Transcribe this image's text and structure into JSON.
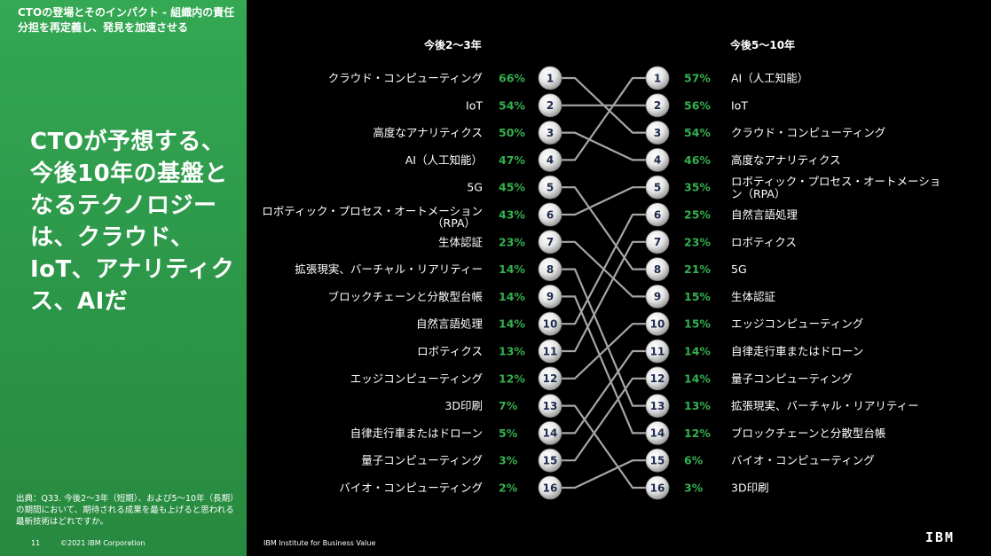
{
  "sidebar": {
    "subtitle": "CTOの登場とそのインパクト - 組織内の責任分担を再定義し、発見を加速させる",
    "headline": "CTOが予想する、今後10年の基盤となるテクノロジーは、クラウド、IoT、アナリティクス、AIだ",
    "source": "出典：Q33. 今後2～3年（短期）、および5～10年（長期）の期間において、期待される成果を最も上げると思われる最新技術はどれですか。"
  },
  "footer": {
    "page": "11",
    "copyright": "©2021 IBM Corporation",
    "institute": "IBM Institute for Business Value",
    "logo": "IBM"
  },
  "colors": {
    "accent": "#35b04f",
    "sidebar": "#2e9a4b",
    "line": "#a6a6a6"
  },
  "chart_data": {
    "type": "slope",
    "short_term_title": "今後2～3年",
    "long_term_title": "今後5～10年",
    "short_term": [
      {
        "rank": 1,
        "label": "クラウド・コンピューティング",
        "value": "66%"
      },
      {
        "rank": 2,
        "label": "IoT",
        "value": "54%"
      },
      {
        "rank": 3,
        "label": "高度なアナリティクス",
        "value": "50%"
      },
      {
        "rank": 4,
        "label": "AI（人工知能）",
        "value": "47%"
      },
      {
        "rank": 5,
        "label": "5G",
        "value": "45%"
      },
      {
        "rank": 6,
        "label": "ロボティック・プロセス・オートメーション（RPA）",
        "value": "43%"
      },
      {
        "rank": 7,
        "label": "生体認証",
        "value": "23%"
      },
      {
        "rank": 8,
        "label": "拡張現実、バーチャル・リアリティー",
        "value": "14%"
      },
      {
        "rank": 9,
        "label": "ブロックチェーンと分散型台帳",
        "value": "14%"
      },
      {
        "rank": 10,
        "label": "自然言語処理",
        "value": "14%"
      },
      {
        "rank": 11,
        "label": "ロボティクス",
        "value": "13%"
      },
      {
        "rank": 12,
        "label": "エッジコンピューティング",
        "value": "12%"
      },
      {
        "rank": 13,
        "label": "3D印刷",
        "value": "7%"
      },
      {
        "rank": 14,
        "label": "自律走行車またはドローン",
        "value": "5%"
      },
      {
        "rank": 15,
        "label": "量子コンピューティング",
        "value": "3%"
      },
      {
        "rank": 16,
        "label": "バイオ・コンピューティング",
        "value": "2%"
      }
    ],
    "long_term": [
      {
        "rank": 1,
        "label": "AI（人工知能）",
        "value": "57%"
      },
      {
        "rank": 2,
        "label": "IoT",
        "value": "56%"
      },
      {
        "rank": 3,
        "label": "クラウド・コンピューティング",
        "value": "54%"
      },
      {
        "rank": 4,
        "label": "高度なアナリティクス",
        "value": "46%"
      },
      {
        "rank": 5,
        "label": "ロボティック・プロセス・オートメーション（RPA）",
        "value": "35%"
      },
      {
        "rank": 6,
        "label": "自然言語処理",
        "value": "25%"
      },
      {
        "rank": 7,
        "label": "ロボティクス",
        "value": "23%"
      },
      {
        "rank": 8,
        "label": "5G",
        "value": "21%"
      },
      {
        "rank": 9,
        "label": "生体認証",
        "value": "15%"
      },
      {
        "rank": 10,
        "label": "エッジコンピューティング",
        "value": "15%"
      },
      {
        "rank": 11,
        "label": "自律走行車またはドローン",
        "value": "14%"
      },
      {
        "rank": 12,
        "label": "量子コンピューティング",
        "value": "14%"
      },
      {
        "rank": 13,
        "label": "拡張現実、バーチャル・リアリティー",
        "value": "13%"
      },
      {
        "rank": 14,
        "label": "ブロックチェーンと分散型台帳",
        "value": "12%"
      },
      {
        "rank": 15,
        "label": "バイオ・コンピューティング",
        "value": "6%"
      },
      {
        "rank": 16,
        "label": "3D印刷",
        "value": "3%"
      }
    ],
    "connections": [
      {
        "from": 1,
        "to": 3
      },
      {
        "from": 2,
        "to": 2
      },
      {
        "from": 3,
        "to": 4
      },
      {
        "from": 4,
        "to": 1
      },
      {
        "from": 5,
        "to": 8
      },
      {
        "from": 6,
        "to": 5
      },
      {
        "from": 7,
        "to": 9
      },
      {
        "from": 8,
        "to": 13
      },
      {
        "from": 9,
        "to": 14
      },
      {
        "from": 10,
        "to": 6
      },
      {
        "from": 11,
        "to": 7
      },
      {
        "from": 12,
        "to": 10
      },
      {
        "from": 13,
        "to": 16
      },
      {
        "from": 14,
        "to": 11
      },
      {
        "from": 15,
        "to": 12
      },
      {
        "from": 16,
        "to": 15
      }
    ]
  }
}
